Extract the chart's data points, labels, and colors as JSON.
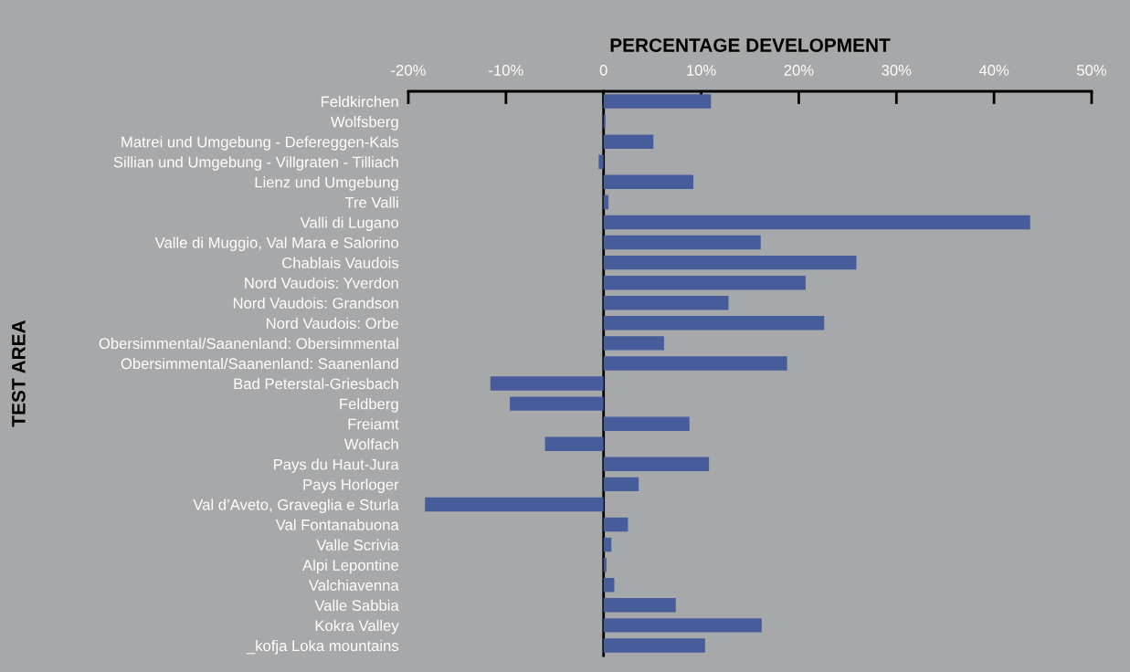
{
  "chart_data": {
    "type": "bar",
    "orientation": "horizontal",
    "xlabel": "PERCENTAGE DEVELOPMENT",
    "ylabel": "TEST AREA",
    "categories": [
      "Feldkirchen",
      "Wolfsberg",
      "Matrei und Umgebung - Defereggen-Kals",
      "Sillian und Umgebung - Villgraten - Tilliach",
      "Lienz und Umgebung",
      "Tre Valli",
      "Valli di Lugano",
      "Valle di Muggio, Val Mara e Salorino",
      "Chablais Vaudois",
      "Nord Vaudois: Yverdon",
      "Nord Vaudois: Grandson",
      "Nord Vaudois: Orbe",
      "Obersimmental/Saanenland: Obersimmental",
      "Obersimmental/Saanenland: Saanenland",
      "Bad Peterstal-Griesbach",
      "Feldberg",
      "Freiamt",
      "Wolfach",
      "Pays du Haut-Jura",
      "Pays Horloger",
      "Val d’Aveto, Graveglia e Sturla",
      "Val Fontanabuona",
      "Valle Scrivia",
      "Alpi Lepontine",
      "Valchiavenna",
      "Valle Sabbia",
      "Kokra Valley",
      "_kofja Loka mountains"
    ],
    "values": [
      11.0,
      0.2,
      5.1,
      -0.5,
      9.2,
      0.5,
      43.7,
      16.1,
      25.9,
      20.7,
      12.8,
      22.6,
      6.2,
      18.8,
      -11.6,
      -9.6,
      8.8,
      -6.0,
      10.8,
      3.6,
      -18.3,
      2.5,
      0.8,
      0.3,
      1.1,
      7.4,
      16.2,
      10.4
    ],
    "color": "#475d9b",
    "xlim": [
      -20,
      50
    ],
    "xticks": [
      {
        "value": -20,
        "label": "-20%"
      },
      {
        "value": -10,
        "label": "-10%"
      },
      0,
      {
        "value": 10,
        "label": "10%"
      },
      {
        "value": 20,
        "label": "20%"
      },
      {
        "value": 30,
        "label": "30%"
      },
      {
        "value": 40,
        "label": "40%"
      },
      {
        "value": 50,
        "label": "50%"
      }
    ],
    "legend": false
  }
}
